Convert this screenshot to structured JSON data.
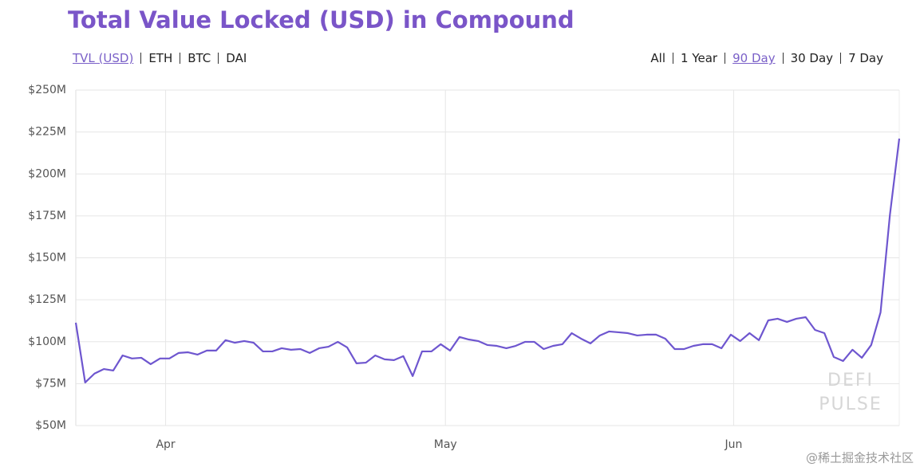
{
  "chart_data": {
    "type": "line",
    "title": "Total Value Locked (USD) in Compound",
    "left_tabs": {
      "items": [
        "TVL (USD)",
        "ETH",
        "BTC",
        "DAI"
      ],
      "active": 0
    },
    "right_tabs": {
      "items": [
        "All",
        "1 Year",
        "90 Day",
        "30 Day",
        "7 Day"
      ],
      "active": 2
    },
    "series": [
      {
        "name": "TVL",
        "color": "#6e56cf",
        "values": [
          111.3,
          75.7,
          81,
          83.7,
          82.8,
          91.8,
          90,
          90.4,
          86.6,
          90,
          90,
          93.3,
          93.7,
          92.3,
          94.7,
          94.7,
          100.9,
          99.4,
          100.4,
          99.4,
          94.2,
          94.2,
          96.1,
          95.2,
          95.6,
          93.3,
          96.1,
          97,
          99.9,
          96.6,
          87.1,
          87.5,
          91.8,
          89.5,
          89,
          91.4,
          79.5,
          94.2,
          94.2,
          98.5,
          94.7,
          102.8,
          101.3,
          100.4,
          98,
          97.5,
          96.1,
          97.5,
          99.9,
          99.9,
          95.6,
          97.5,
          98.5,
          105.1,
          101.8,
          99,
          103.7,
          106.1,
          105.6,
          105.1,
          103.7,
          104.2,
          104.2,
          101.8,
          95.6,
          95.6,
          97.5,
          98.5,
          98.5,
          96.1,
          104.2,
          100.4,
          105.1,
          100.9,
          112.7,
          113.7,
          111.8,
          113.7,
          114.6,
          107,
          105.1,
          90.9,
          88.5,
          95.2,
          90.4,
          98,
          117.5,
          175.5,
          221.1
        ]
      }
    ],
    "xlim": [
      0,
      88
    ],
    "xticks": [
      {
        "value": 9.6,
        "label": "Apr"
      },
      {
        "value": 39.5,
        "label": "May"
      },
      {
        "value": 70.3,
        "label": "Jun"
      }
    ],
    "ylim": [
      50,
      250
    ],
    "yticks": [
      {
        "value": 50,
        "label": "$50M"
      },
      {
        "value": 75,
        "label": "$75M"
      },
      {
        "value": 100,
        "label": "$100M"
      },
      {
        "value": 125,
        "label": "$125M"
      },
      {
        "value": 150,
        "label": "$150M"
      },
      {
        "value": 175,
        "label": "$175M"
      },
      {
        "value": 200,
        "label": "$200M"
      },
      {
        "value": 225,
        "label": "$225M"
      },
      {
        "value": 250,
        "label": "$250M"
      }
    ],
    "grid": true,
    "watermark": [
      "DEFI",
      "PULSE"
    ]
  },
  "footer": {
    "credit": "@稀土掘金技术社区"
  }
}
